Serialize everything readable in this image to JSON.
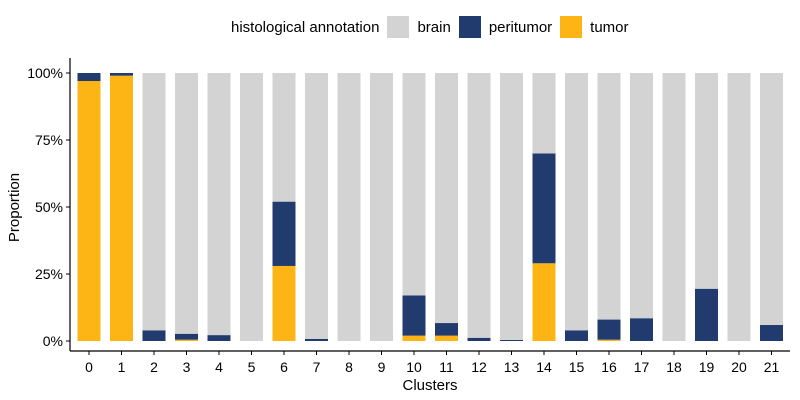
{
  "chart_data": {
    "type": "bar",
    "stacked": true,
    "normalized": true,
    "title": "",
    "xlabel": "Clusters",
    "ylabel": "Proportion",
    "ylim": [
      0,
      1
    ],
    "yticks": [
      0,
      0.25,
      0.5,
      0.75,
      1.0
    ],
    "ytick_labels": [
      "0%",
      "25%",
      "50%",
      "75%",
      "100%"
    ],
    "categories": [
      "0",
      "1",
      "2",
      "3",
      "4",
      "5",
      "6",
      "7",
      "8",
      "9",
      "10",
      "11",
      "12",
      "13",
      "14",
      "15",
      "16",
      "17",
      "18",
      "19",
      "20",
      "21"
    ],
    "legend": {
      "title": "histological annotation",
      "position": "top"
    },
    "series": [
      {
        "name": "tumor",
        "color": "#FDB515",
        "values": [
          0.97,
          0.99,
          0.0,
          0.005,
          0.0,
          0.0,
          0.28,
          0.0,
          0.0,
          0.0,
          0.02,
          0.02,
          0.0,
          0.0,
          0.29,
          0.0,
          0.005,
          0.0,
          0.0,
          0.0,
          0.0,
          0.0
        ]
      },
      {
        "name": "peritumor",
        "color": "#213B6E",
        "values": [
          0.03,
          0.01,
          0.04,
          0.022,
          0.022,
          0.0,
          0.24,
          0.008,
          0.0,
          0.0,
          0.15,
          0.047,
          0.012,
          0.004,
          0.41,
          0.04,
          0.075,
          0.085,
          0.0,
          0.195,
          0.0,
          0.06
        ]
      },
      {
        "name": "brain",
        "color": "#D3D3D3",
        "values": [
          0.0,
          0.0,
          0.96,
          0.973,
          0.978,
          1.0,
          0.48,
          0.992,
          1.0,
          1.0,
          0.83,
          0.933,
          0.988,
          0.996,
          0.3,
          0.96,
          0.92,
          0.915,
          1.0,
          0.805,
          1.0,
          0.94
        ]
      }
    ],
    "legend_order": [
      "brain",
      "peritumor",
      "tumor"
    ],
    "grid": false
  }
}
